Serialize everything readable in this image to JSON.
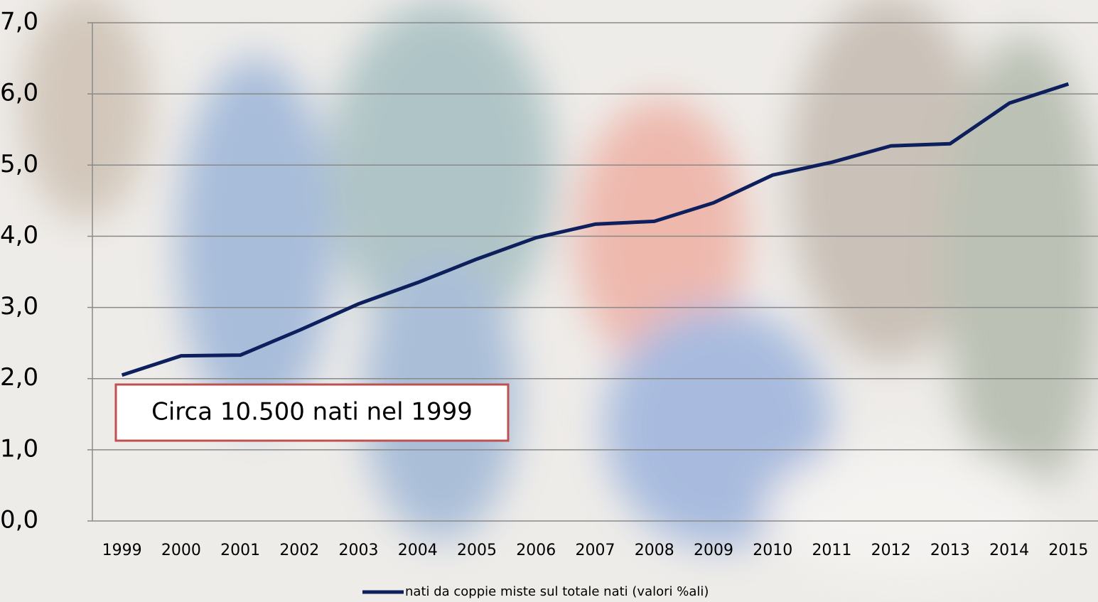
{
  "chart_data": {
    "type": "line",
    "categories": [
      "1999",
      "2000",
      "2001",
      "2002",
      "2003",
      "2004",
      "2005",
      "2006",
      "2007",
      "2008",
      "2009",
      "2010",
      "2011",
      "2012",
      "2013",
      "2014",
      "2015"
    ],
    "series": [
      {
        "name": "nati da coppie miste sul totale nati (valori %ali)",
        "color": "#0d1f5c",
        "values": [
          2.05,
          2.32,
          2.33,
          2.68,
          3.05,
          3.35,
          3.68,
          3.98,
          4.17,
          4.21,
          4.47,
          4.86,
          5.04,
          5.27,
          5.3,
          5.87,
          6.14
        ]
      }
    ],
    "ylim": [
      0,
      7
    ],
    "yticks": [
      {
        "value": 0,
        "label": "0,0"
      },
      {
        "value": 1,
        "label": "1,0"
      },
      {
        "value": 2,
        "label": "2,0"
      },
      {
        "value": 3,
        "label": "3,0"
      },
      {
        "value": 4,
        "label": "4,0"
      },
      {
        "value": 5,
        "label": "5,0"
      },
      {
        "value": 6,
        "label": "6,0"
      },
      {
        "value": 7,
        "label": "7,0"
      }
    ],
    "grid": true,
    "annotation": "Circa 10.500 nati nel 1999",
    "legend": "bottom"
  }
}
